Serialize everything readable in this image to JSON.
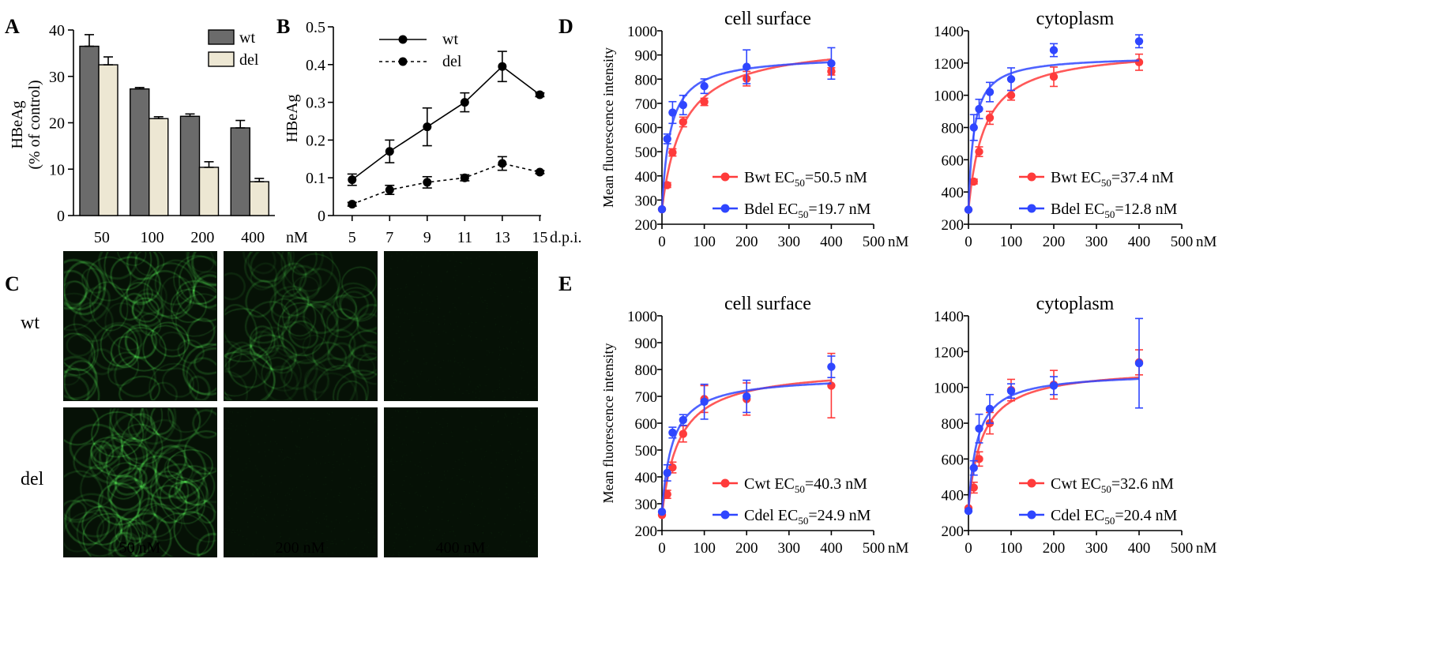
{
  "panel_letters": {
    "A": "A",
    "B": "B",
    "C": "C",
    "D": "D",
    "E": "E"
  },
  "microscopy": {
    "rows": [
      "wt",
      "del"
    ],
    "captions": [
      "50 nM",
      "200 nM",
      "400 nM"
    ],
    "brightness": [
      [
        0.75,
        0.55,
        0.05
      ],
      [
        0.8,
        0.05,
        0.05
      ]
    ]
  },
  "colors": {
    "red": "#ff3b3b",
    "blue": "#2f46ff",
    "dark_bar": "#6b6b6b",
    "light_bar": "#ede7d3",
    "green": "#3fcf3f"
  },
  "chart_data": [
    {
      "id": "A",
      "type": "bar",
      "ylabel": "HBeAg",
      "ylabel2": "(% of control)",
      "categories": [
        "50",
        "100",
        "200",
        "400"
      ],
      "xunit": "nM",
      "ylim": [
        0,
        40
      ],
      "yticks": [
        0,
        10,
        20,
        30,
        40
      ],
      "series": [
        {
          "name": "wt",
          "values": [
            36.5,
            27.3,
            21.4,
            18.9
          ],
          "errors": [
            2.5,
            0.3,
            0.5,
            1.6
          ]
        },
        {
          "name": "del",
          "values": [
            32.5,
            20.9,
            10.4,
            7.3
          ],
          "errors": [
            1.7,
            0.4,
            1.2,
            0.7
          ]
        }
      ],
      "legend": "top-right"
    },
    {
      "id": "B",
      "type": "line",
      "ylabel": "HBeAg",
      "x": [
        5,
        7,
        9,
        11,
        13,
        15
      ],
      "xunit": "d.p.i.",
      "ylim": [
        0,
        0.5
      ],
      "yticks": [
        0,
        0.1,
        0.2,
        0.3,
        0.4,
        0.5
      ],
      "series": [
        {
          "name": "wt",
          "values": [
            0.095,
            0.17,
            0.235,
            0.3,
            0.395,
            0.32
          ],
          "errors": [
            0.015,
            0.03,
            0.05,
            0.025,
            0.04,
            0.005
          ],
          "style": "solid"
        },
        {
          "name": "del",
          "values": [
            0.03,
            0.068,
            0.088,
            0.1,
            0.138,
            0.115
          ],
          "errors": [
            0.005,
            0.012,
            0.015,
            0.008,
            0.018,
            0.004
          ],
          "style": "dashed"
        }
      ],
      "legend": "top-left"
    },
    {
      "id": "D1",
      "type": "scatter",
      "title": "cell surface",
      "ylabel": "Mean fluorescence intensity",
      "xlim": [
        0,
        500
      ],
      "xticks": [
        0,
        100,
        200,
        300,
        400,
        500
      ],
      "xunit": "nM",
      "ylim": [
        200,
        1000
      ],
      "yticks": [
        200,
        300,
        400,
        500,
        600,
        700,
        800,
        900,
        1000
      ],
      "series": [
        {
          "name": "Bwt",
          "ec50_label": "EC",
          "ec50_value": "=50.5 nM",
          "color": "red",
          "x": [
            0,
            12.5,
            25,
            50,
            100,
            200,
            400
          ],
          "y": [
            262,
            362,
            497,
            623,
            706,
            802,
            832
          ],
          "errors": [
            0,
            10,
            15,
            20,
            15,
            30,
            15
          ],
          "fit": {
            "base": 262,
            "top": 960,
            "ec50": 50.5
          }
        },
        {
          "name": "Bdel",
          "ec50_label": "EC",
          "ec50_value": "=19.7 nM",
          "color": "blue",
          "x": [
            0,
            12.5,
            25,
            50,
            100,
            200,
            400
          ],
          "y": [
            262,
            553,
            662,
            693,
            771,
            851,
            865
          ],
          "errors": [
            0,
            20,
            45,
            40,
            30,
            70,
            65
          ],
          "fit": {
            "base": 262,
            "top": 900,
            "ec50": 19.7
          }
        }
      ]
    },
    {
      "id": "D2",
      "type": "scatter",
      "title": "cytoplasm",
      "xlim": [
        0,
        500
      ],
      "xticks": [
        0,
        100,
        200,
        300,
        400,
        500
      ],
      "xunit": "nM",
      "ylim": [
        200,
        1400
      ],
      "yticks": [
        200,
        400,
        600,
        800,
        1000,
        1200,
        1400
      ],
      "series": [
        {
          "name": "Bwt",
          "ec50_label": "EC",
          "ec50_value": "=37.4 nM",
          "color": "red",
          "x": [
            0,
            12.5,
            25,
            50,
            100,
            200,
            400
          ],
          "y": [
            290,
            465,
            650,
            860,
            1000,
            1115,
            1205
          ],
          "errors": [
            0,
            15,
            30,
            40,
            30,
            60,
            50
          ],
          "fit": {
            "base": 290,
            "top": 1295,
            "ec50": 37.4
          }
        },
        {
          "name": "Bdel",
          "ec50_label": "EC",
          "ec50_value": "=12.8 nM",
          "color": "blue",
          "x": [
            0,
            12.5,
            25,
            50,
            100,
            200,
            400
          ],
          "y": [
            290,
            800,
            915,
            1020,
            1100,
            1280,
            1335
          ],
          "errors": [
            0,
            80,
            60,
            60,
            70,
            40,
            40
          ],
          "fit": {
            "base": 290,
            "top": 1245,
            "ec50": 12.8
          }
        }
      ]
    },
    {
      "id": "E1",
      "type": "scatter",
      "title": "cell surface",
      "ylabel": "Mean fluorescence intensity",
      "xlim": [
        0,
        500
      ],
      "xticks": [
        0,
        100,
        200,
        300,
        400,
        500
      ],
      "xunit": "nM",
      "ylim": [
        200,
        1000
      ],
      "yticks": [
        200,
        300,
        400,
        500,
        600,
        700,
        800,
        900,
        1000
      ],
      "series": [
        {
          "name": "Cwt",
          "ec50_label": "EC",
          "ec50_value": "=40.3 nM",
          "color": "red",
          "x": [
            0,
            12.5,
            25,
            50,
            100,
            200,
            400
          ],
          "y": [
            258,
            335,
            435,
            560,
            690,
            690,
            740
          ],
          "errors": [
            0,
            15,
            20,
            30,
            50,
            60,
            120
          ],
          "fit": {
            "base": 258,
            "top": 810,
            "ec50": 40.3
          }
        },
        {
          "name": "Cdel",
          "ec50_label": "EC",
          "ec50_value": "=24.9 nM",
          "color": "blue",
          "x": [
            0,
            12.5,
            25,
            50,
            100,
            200,
            400
          ],
          "y": [
            270,
            415,
            565,
            612,
            680,
            700,
            810
          ],
          "errors": [
            0,
            30,
            20,
            20,
            65,
            60,
            40
          ],
          "fit": {
            "base": 270,
            "top": 778,
            "ec50": 24.9
          }
        }
      ]
    },
    {
      "id": "E2",
      "type": "scatter",
      "title": "cytoplasm",
      "xlim": [
        0,
        500
      ],
      "xticks": [
        0,
        100,
        200,
        300,
        400,
        500
      ],
      "xunit": "nM",
      "ylim": [
        200,
        1400
      ],
      "yticks": [
        200,
        400,
        600,
        800,
        1000,
        1200,
        1400
      ],
      "series": [
        {
          "name": "Cwt",
          "ec50_label": "EC",
          "ec50_value": "=32.6 nM",
          "color": "red",
          "x": [
            0,
            12.5,
            25,
            50,
            100,
            200,
            400
          ],
          "y": [
            325,
            440,
            600,
            800,
            985,
            1015,
            1140
          ],
          "errors": [
            0,
            30,
            40,
            60,
            60,
            80,
            70
          ],
          "fit": {
            "base": 325,
            "top": 1115,
            "ec50": 32.6
          }
        },
        {
          "name": "Cdel",
          "ec50_label": "EC",
          "ec50_value": "=20.4 nM",
          "color": "blue",
          "x": [
            0,
            12.5,
            25,
            50,
            100,
            200,
            400
          ],
          "y": [
            310,
            550,
            770,
            880,
            980,
            1010,
            1135
          ],
          "errors": [
            0,
            40,
            80,
            80,
            40,
            50,
            250
          ],
          "fit": {
            "base": 310,
            "top": 1085,
            "ec50": 20.4
          }
        }
      ]
    }
  ]
}
